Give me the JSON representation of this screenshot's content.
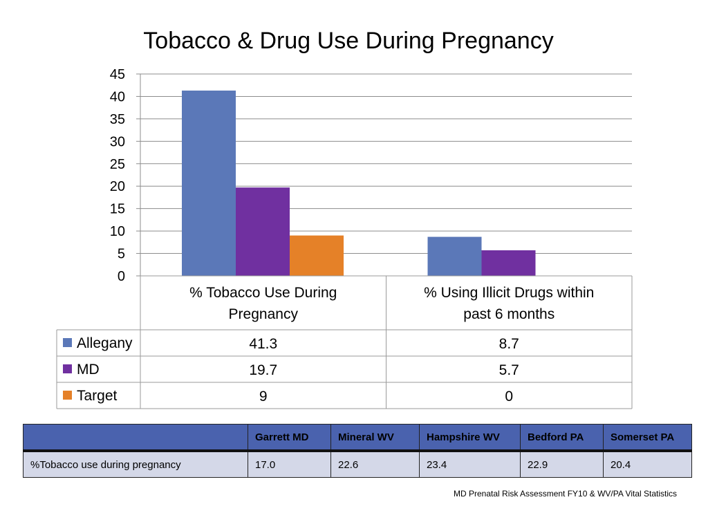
{
  "title": "Tobacco & Drug Use During Pregnancy",
  "chart_data": {
    "type": "bar",
    "categories": [
      "% Tobacco Use During Pregnancy",
      "%  Using Illicit Drugs within past 6 months"
    ],
    "category_lines": [
      [
        "% Tobacco Use During",
        "Pregnancy"
      ],
      [
        "%  Using Illicit Drugs within",
        "past 6 months"
      ]
    ],
    "series": [
      {
        "name": "Allegany",
        "values": [
          41.3,
          8.7
        ],
        "labels": [
          "41.3",
          "8.7"
        ],
        "color": "#5b78b8"
      },
      {
        "name": "MD",
        "values": [
          19.7,
          5.7
        ],
        "labels": [
          "19.7",
          "5.7"
        ],
        "color": "#7030a0"
      },
      {
        "name": "Target",
        "values": [
          9,
          0
        ],
        "labels": [
          "9",
          "0"
        ],
        "color": "#e58128"
      }
    ],
    "yticks": [
      "0",
      "5",
      "10",
      "15",
      "20",
      "25",
      "30",
      "35",
      "40",
      "45"
    ],
    "ylim": [
      0,
      45
    ],
    "grid": true,
    "legend": "data-table"
  },
  "comparison_table": {
    "headers": [
      "",
      "Garrett MD",
      "Mineral WV",
      "Hampshire WV",
      "Bedford PA",
      "Somerset PA"
    ],
    "rows": [
      [
        "%Tobacco use during pregnancy",
        "17.0",
        "22.6",
        "23.4",
        "22.9",
        "20.4"
      ]
    ]
  },
  "source": "MD Prenatal Risk Assessment FY10 & WV/PA Vital Statistics"
}
